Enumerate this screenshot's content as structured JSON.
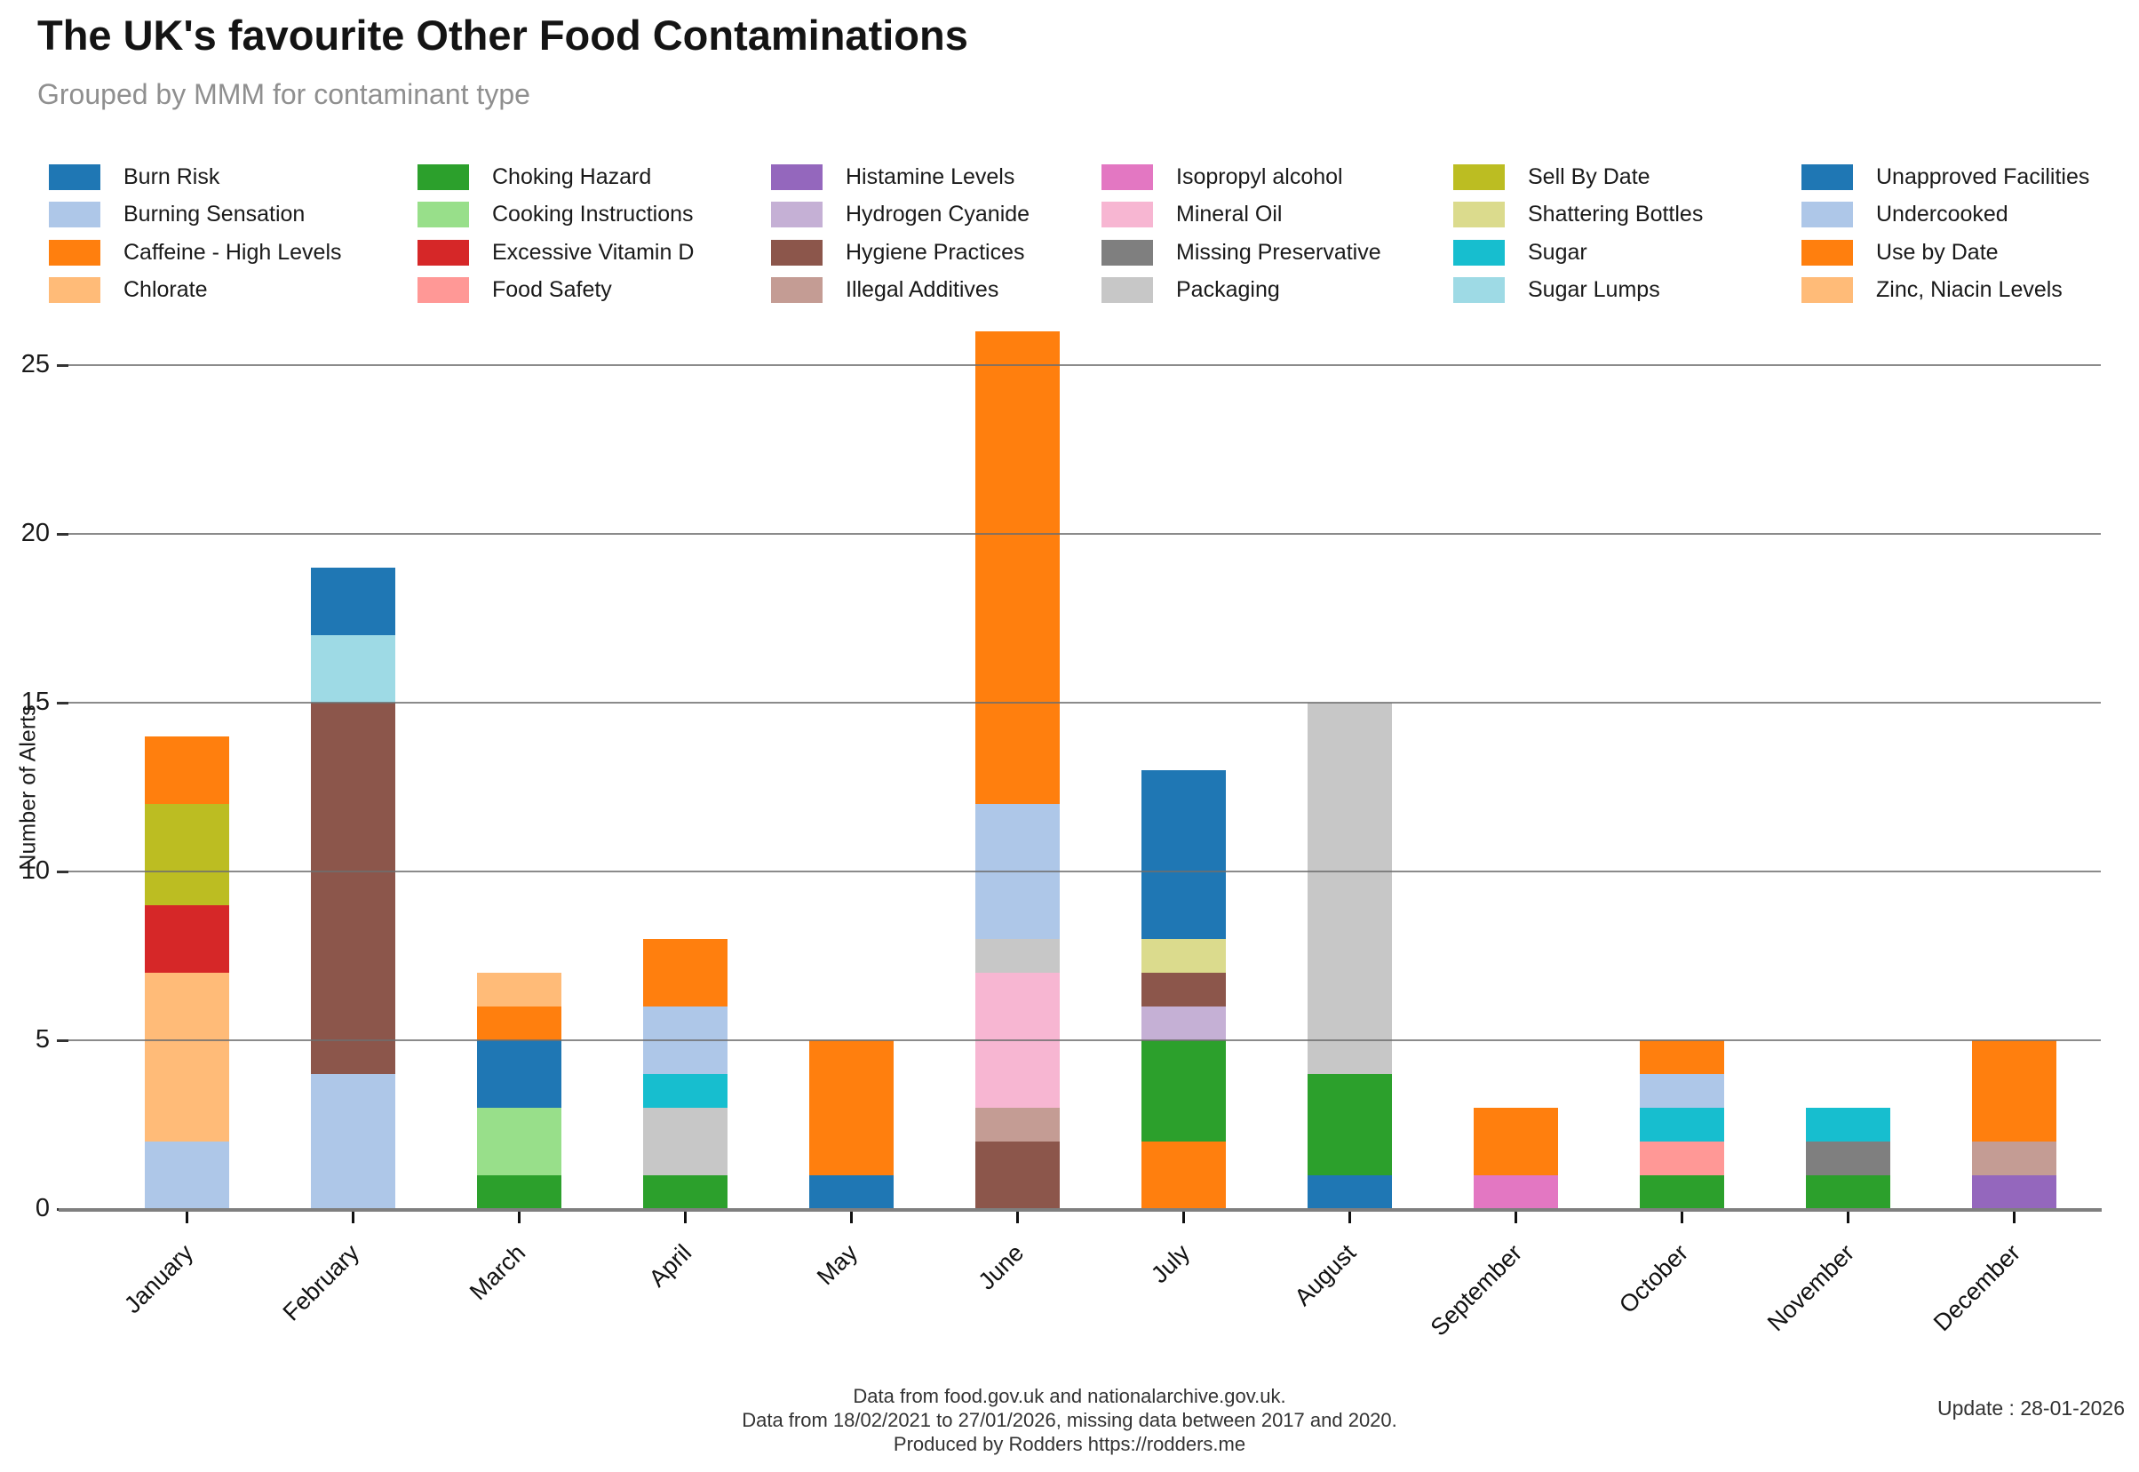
{
  "title": "The UK's favourite Other Food Contaminations",
  "subtitle": "Grouped by MMM for contaminant type",
  "footer": {
    "line1": "Data from food.gov.uk and nationalarchive.gov.uk.",
    "line2": "Data from 18/02/2021 to 27/01/2026, missing data between 2017 and 2020.",
    "line3": "Produced by Rodders https://rodders.me",
    "update": "Update : 28-01-2026"
  },
  "chart_data": {
    "type": "bar",
    "stacked": true,
    "title": "The UK's favourite Other Food Contaminations",
    "subtitle": "Grouped by MMM for contaminant type",
    "xlabel": "",
    "ylabel": "Number of Alerts",
    "categories": [
      "January",
      "February",
      "March",
      "April",
      "May",
      "June",
      "July",
      "August",
      "September",
      "October",
      "November",
      "December"
    ],
    "yticks": [
      0,
      5,
      10,
      15,
      20,
      25
    ],
    "ylim": [
      0,
      26
    ],
    "grid": true,
    "legend_position": "top",
    "legend_columns": 6,
    "monthly_totals": [
      14,
      19,
      7,
      8,
      5,
      26,
      13,
      15,
      3,
      5,
      3,
      5
    ],
    "series": [
      {
        "name": "Burn Risk",
        "color": "#1f77b4",
        "values": [
          0,
          0,
          0,
          0,
          1,
          0,
          0,
          1,
          0,
          0,
          0,
          0
        ]
      },
      {
        "name": "Burning Sensation",
        "color": "#aec7e8",
        "values": [
          2,
          4,
          0,
          0,
          0,
          0,
          0,
          0,
          0,
          0,
          0,
          0
        ]
      },
      {
        "name": "Caffeine - High Levels",
        "color": "#ff7f0e",
        "values": [
          0,
          0,
          0,
          0,
          0,
          0,
          2,
          0,
          0,
          0,
          0,
          0
        ]
      },
      {
        "name": "Chlorate",
        "color": "#ffbb78",
        "values": [
          5,
          0,
          0,
          0,
          0,
          0,
          0,
          0,
          0,
          0,
          0,
          0
        ]
      },
      {
        "name": "Choking Hazard",
        "color": "#2ca02c",
        "values": [
          0,
          0,
          1,
          1,
          0,
          0,
          3,
          3,
          0,
          1,
          1,
          0
        ]
      },
      {
        "name": "Cooking Instructions",
        "color": "#98df8a",
        "values": [
          0,
          0,
          2,
          0,
          0,
          0,
          0,
          0,
          0,
          0,
          0,
          0
        ]
      },
      {
        "name": "Excessive Vitamin D",
        "color": "#d62728",
        "values": [
          2,
          0,
          0,
          0,
          0,
          0,
          0,
          0,
          0,
          0,
          0,
          0
        ]
      },
      {
        "name": "Food Safety",
        "color": "#ff9896",
        "values": [
          0,
          0,
          0,
          0,
          0,
          0,
          0,
          0,
          0,
          1,
          0,
          0
        ]
      },
      {
        "name": "Histamine Levels",
        "color": "#9467bd",
        "values": [
          0,
          0,
          0,
          0,
          0,
          0,
          0,
          0,
          0,
          0,
          0,
          1
        ]
      },
      {
        "name": "Hydrogen Cyanide",
        "color": "#c5b0d5",
        "values": [
          0,
          0,
          0,
          0,
          0,
          0,
          1,
          0,
          0,
          0,
          0,
          0
        ]
      },
      {
        "name": "Hygiene Practices",
        "color": "#8c564b",
        "values": [
          0,
          11,
          0,
          0,
          0,
          2,
          1,
          0,
          0,
          0,
          0,
          0
        ]
      },
      {
        "name": "Illegal Additives",
        "color": "#c49c94",
        "values": [
          0,
          0,
          0,
          0,
          0,
          1,
          0,
          0,
          0,
          0,
          0,
          1
        ]
      },
      {
        "name": "Isopropyl alcohol",
        "color": "#e377c2",
        "values": [
          0,
          0,
          0,
          0,
          0,
          0,
          0,
          0,
          1,
          0,
          0,
          0
        ]
      },
      {
        "name": "Mineral Oil",
        "color": "#f7b6d2",
        "values": [
          0,
          0,
          0,
          0,
          0,
          4,
          0,
          0,
          0,
          0,
          0,
          0
        ]
      },
      {
        "name": "Missing Preservative",
        "color": "#7f7f7f",
        "values": [
          0,
          0,
          0,
          0,
          0,
          0,
          0,
          0,
          0,
          0,
          1,
          0
        ]
      },
      {
        "name": "Packaging",
        "color": "#c7c7c7",
        "values": [
          0,
          0,
          0,
          2,
          0,
          1,
          0,
          11,
          0,
          0,
          0,
          0
        ]
      },
      {
        "name": "Sell By Date",
        "color": "#bcbd22",
        "values": [
          3,
          0,
          0,
          0,
          0,
          0,
          0,
          0,
          0,
          0,
          0,
          0
        ]
      },
      {
        "name": "Shattering Bottles",
        "color": "#dbdb8d",
        "values": [
          0,
          0,
          0,
          0,
          0,
          0,
          1,
          0,
          0,
          0,
          0,
          0
        ]
      },
      {
        "name": "Sugar",
        "color": "#17becf",
        "values": [
          0,
          0,
          0,
          1,
          0,
          0,
          0,
          0,
          0,
          1,
          1,
          0
        ]
      },
      {
        "name": "Sugar Lumps",
        "color": "#9edae5",
        "values": [
          0,
          2,
          0,
          0,
          0,
          0,
          0,
          0,
          0,
          0,
          0,
          0
        ]
      },
      {
        "name": "Unapproved Facilities",
        "color": "#1f77b4",
        "values": [
          0,
          2,
          2,
          0,
          0,
          0,
          5,
          0,
          0,
          0,
          0,
          0
        ]
      },
      {
        "name": "Undercooked",
        "color": "#aec7e8",
        "values": [
          0,
          0,
          0,
          2,
          0,
          4,
          0,
          0,
          0,
          1,
          0,
          0
        ]
      },
      {
        "name": "Use by Date",
        "color": "#ff7f0e",
        "values": [
          2,
          0,
          1,
          2,
          4,
          14,
          0,
          0,
          2,
          1,
          0,
          3
        ]
      },
      {
        "name": "Zinc, Niacin Levels",
        "color": "#ffbb78",
        "values": [
          0,
          0,
          1,
          0,
          0,
          0,
          0,
          0,
          0,
          0,
          0,
          0
        ]
      }
    ]
  }
}
